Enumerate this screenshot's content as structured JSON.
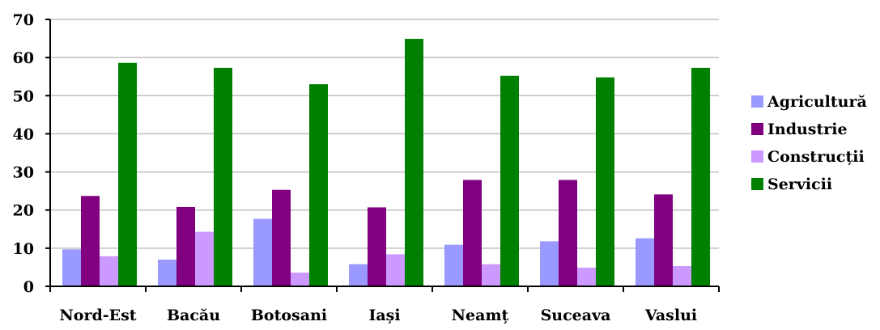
{
  "chart_data": {
    "type": "bar",
    "title": "",
    "xlabel": "",
    "ylabel": "",
    "ylim": [
      0,
      70
    ],
    "yticks": [
      0,
      10,
      20,
      30,
      40,
      50,
      60,
      70
    ],
    "grid": true,
    "legend_position": "right",
    "categories": [
      "Nord-Est",
      "Bacău",
      "Botosani",
      "Iași",
      "Neamț",
      "Suceava",
      "Vaslui"
    ],
    "series": [
      {
        "name": "Agricultură",
        "color": "#9999FF",
        "values": [
          9.7,
          7.0,
          17.7,
          5.8,
          10.9,
          11.8,
          12.6
        ]
      },
      {
        "name": "Industrie",
        "color": "#800080",
        "values": [
          23.7,
          20.8,
          25.3,
          20.7,
          27.9,
          27.9,
          24.1
        ]
      },
      {
        "name": "Construcții",
        "color": "#CC99FF",
        "values": [
          7.9,
          14.3,
          3.6,
          8.4,
          5.8,
          4.9,
          5.3
        ]
      },
      {
        "name": "Servicii",
        "color": "#008000",
        "values": [
          58.6,
          57.3,
          53.0,
          64.9,
          55.2,
          54.8,
          57.3
        ]
      }
    ]
  }
}
